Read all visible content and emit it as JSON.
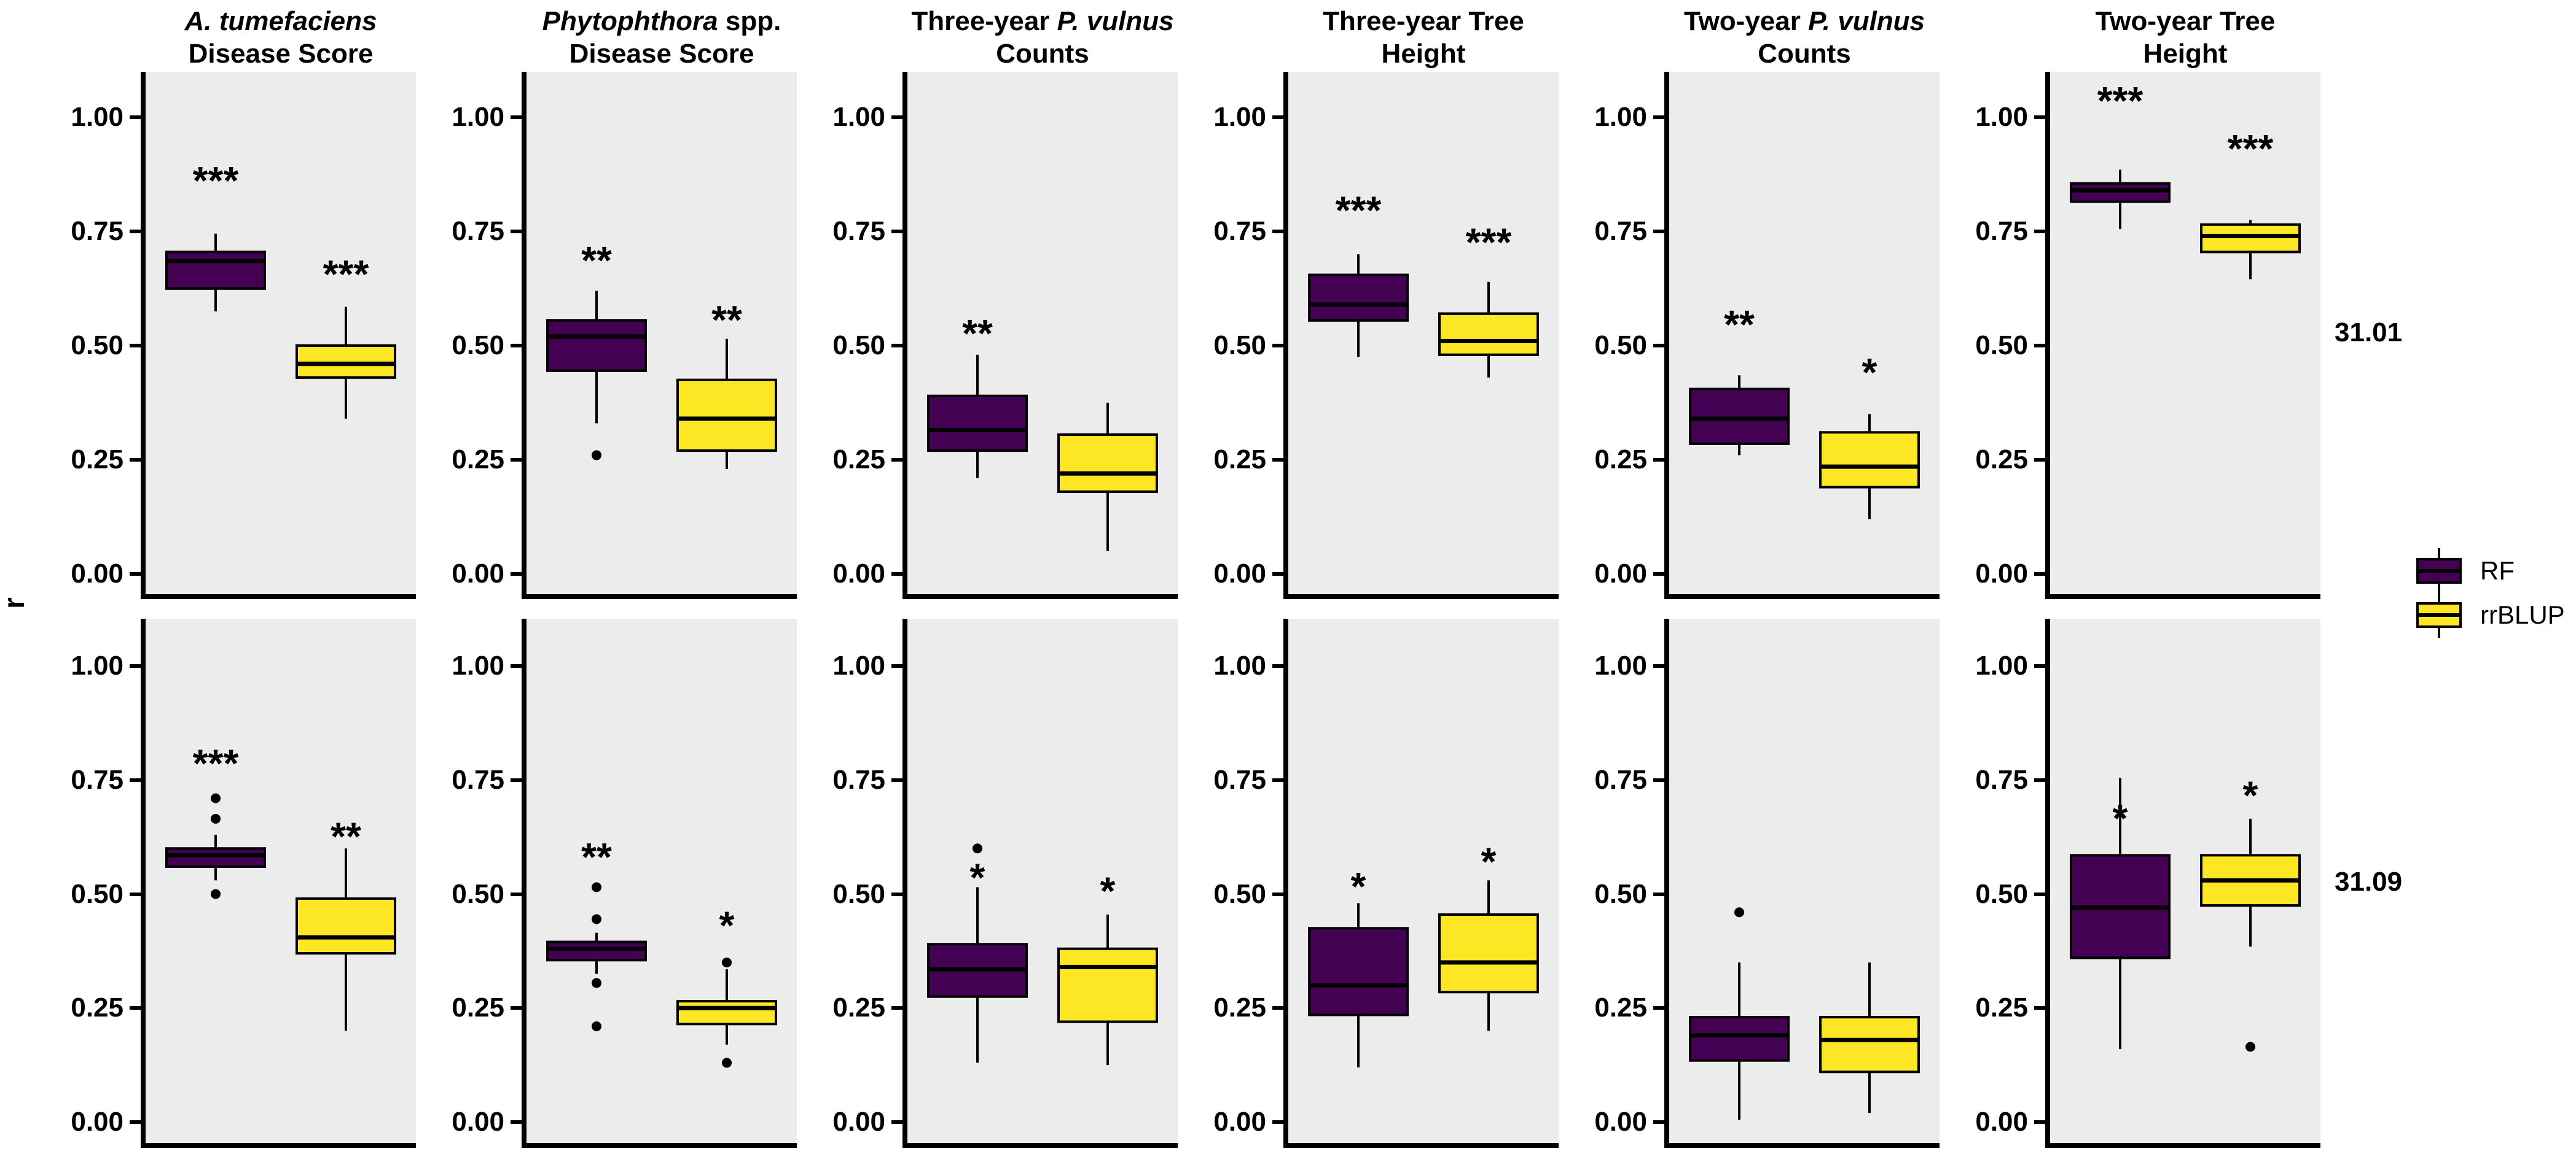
{
  "figure": {
    "y_axis_label": "r",
    "y_tick_labels": [
      "1.00",
      "0.75",
      "0.50",
      "0.25",
      "0.00"
    ],
    "rows": [
      {
        "label": "31.01"
      },
      {
        "label": "31.09"
      }
    ],
    "legend": {
      "items": [
        {
          "label": "RF",
          "color": "#440154"
        },
        {
          "label": "rrBLUP",
          "color": "#FDE725"
        }
      ]
    },
    "colors": {
      "rf": "#440154",
      "rrblup": "#FDE725",
      "panel_background": "#ececec",
      "axis": "#000000"
    }
  },
  "chart_data": {
    "type": "boxplot",
    "layout_hint": "facet grid 2 rows x 6 columns, grey panel backgrounds, no x tick labels, thick black left/bottom axes",
    "y_label": "r",
    "ylim": [
      0.0,
      1.0
    ],
    "y_ticks": [
      1.0,
      0.75,
      0.5,
      0.25,
      0.0
    ],
    "series": [
      "RF",
      "rrBLUP"
    ],
    "series_colors": {
      "RF": "#440154",
      "rrBLUP": "#FDE725"
    },
    "facet_rows": [
      "31.01",
      "31.09"
    ],
    "facet_cols": [
      {
        "line1": [
          {
            "text": "A. tumefaciens",
            "italic": true
          }
        ],
        "line2": "Disease Score"
      },
      {
        "line1": [
          {
            "text": "Phytophthora",
            "italic": true
          },
          {
            "text": " spp.",
            "italic": false
          }
        ],
        "line2": "Disease Score"
      },
      {
        "line1": [
          {
            "text": "Three-year ",
            "italic": false
          },
          {
            "text": "P. vulnus",
            "italic": true
          }
        ],
        "line2": "Counts"
      },
      {
        "line1": [
          {
            "text": "Three-year Tree",
            "italic": false
          }
        ],
        "line2": "Height"
      },
      {
        "line1": [
          {
            "text": "Two-year ",
            "italic": false
          },
          {
            "text": "P. vulnus",
            "italic": true
          }
        ],
        "line2": "Counts"
      },
      {
        "line1": [
          {
            "text": "Two-year Tree",
            "italic": false
          }
        ],
        "line2": "Height"
      }
    ],
    "panels": [
      {
        "row": "31.01",
        "col": 1,
        "boxes": [
          {
            "group": "RF",
            "whisker_low": 0.575,
            "q1": 0.625,
            "median": 0.685,
            "q3": 0.705,
            "whisker_high": 0.745,
            "outliers": [],
            "significance": "***",
            "sig_y": 0.875
          },
          {
            "group": "rrBLUP",
            "whisker_low": 0.34,
            "q1": 0.43,
            "median": 0.46,
            "q3": 0.5,
            "whisker_high": 0.585,
            "outliers": [],
            "significance": "***",
            "sig_y": 0.67
          }
        ]
      },
      {
        "row": "31.01",
        "col": 2,
        "boxes": [
          {
            "group": "RF",
            "whisker_low": 0.33,
            "q1": 0.445,
            "median": 0.52,
            "q3": 0.555,
            "whisker_high": 0.62,
            "outliers": [
              0.26
            ],
            "significance": "**",
            "sig_y": 0.7
          },
          {
            "group": "rrBLUP",
            "whisker_low": 0.23,
            "q1": 0.27,
            "median": 0.34,
            "q3": 0.425,
            "whisker_high": 0.515,
            "outliers": [],
            "significance": "**",
            "sig_y": 0.57
          }
        ]
      },
      {
        "row": "31.01",
        "col": 3,
        "boxes": [
          {
            "group": "RF",
            "whisker_low": 0.21,
            "q1": 0.27,
            "median": 0.315,
            "q3": 0.39,
            "whisker_high": 0.48,
            "outliers": [],
            "significance": "**",
            "sig_y": 0.54
          },
          {
            "group": "rrBLUP",
            "whisker_low": 0.05,
            "q1": 0.18,
            "median": 0.22,
            "q3": 0.305,
            "whisker_high": 0.375,
            "outliers": [],
            "significance": "",
            "sig_y": null
          }
        ]
      },
      {
        "row": "31.01",
        "col": 4,
        "boxes": [
          {
            "group": "RF",
            "whisker_low": 0.475,
            "q1": 0.555,
            "median": 0.59,
            "q3": 0.655,
            "whisker_high": 0.7,
            "outliers": [],
            "significance": "***",
            "sig_y": 0.81
          },
          {
            "group": "rrBLUP",
            "whisker_low": 0.43,
            "q1": 0.48,
            "median": 0.51,
            "q3": 0.57,
            "whisker_high": 0.64,
            "outliers": [],
            "significance": "***",
            "sig_y": 0.74
          }
        ]
      },
      {
        "row": "31.01",
        "col": 5,
        "boxes": [
          {
            "group": "RF",
            "whisker_low": 0.26,
            "q1": 0.285,
            "median": 0.34,
            "q3": 0.405,
            "whisker_high": 0.435,
            "outliers": [],
            "significance": "**",
            "sig_y": 0.56
          },
          {
            "group": "rrBLUP",
            "whisker_low": 0.12,
            "q1": 0.19,
            "median": 0.235,
            "q3": 0.31,
            "whisker_high": 0.35,
            "outliers": [],
            "significance": "*",
            "sig_y": 0.455
          }
        ]
      },
      {
        "row": "31.01",
        "col": 6,
        "boxes": [
          {
            "group": "RF",
            "whisker_low": 0.755,
            "q1": 0.815,
            "median": 0.84,
            "q3": 0.855,
            "whisker_high": 0.885,
            "outliers": [],
            "significance": "***",
            "sig_y": 1.05
          },
          {
            "group": "rrBLUP",
            "whisker_low": 0.645,
            "q1": 0.705,
            "median": 0.74,
            "q3": 0.765,
            "whisker_high": 0.775,
            "outliers": [],
            "significance": "***",
            "sig_y": 0.945
          }
        ]
      },
      {
        "row": "31.09",
        "col": 1,
        "boxes": [
          {
            "group": "RF",
            "whisker_low": 0.53,
            "q1": 0.56,
            "median": 0.585,
            "q3": 0.6,
            "whisker_high": 0.63,
            "outliers": [
              0.71,
              0.665,
              0.5
            ],
            "significance": "***",
            "sig_y": 0.8
          },
          {
            "group": "rrBLUP",
            "whisker_low": 0.2,
            "q1": 0.37,
            "median": 0.405,
            "q3": 0.49,
            "whisker_high": 0.6,
            "outliers": [],
            "significance": "**",
            "sig_y": 0.64
          }
        ]
      },
      {
        "row": "31.09",
        "col": 2,
        "boxes": [
          {
            "group": "RF",
            "whisker_low": 0.325,
            "q1": 0.355,
            "median": 0.38,
            "q3": 0.395,
            "whisker_high": 0.415,
            "outliers": [
              0.515,
              0.445,
              0.305,
              0.21
            ],
            "significance": "**",
            "sig_y": 0.595
          },
          {
            "group": "rrBLUP",
            "whisker_low": 0.17,
            "q1": 0.215,
            "median": 0.25,
            "q3": 0.265,
            "whisker_high": 0.335,
            "outliers": [
              0.35,
              0.13
            ],
            "significance": "*",
            "sig_y": 0.445
          }
        ]
      },
      {
        "row": "31.09",
        "col": 3,
        "boxes": [
          {
            "group": "RF",
            "whisker_low": 0.13,
            "q1": 0.275,
            "median": 0.335,
            "q3": 0.39,
            "whisker_high": 0.515,
            "outliers": [
              0.6
            ],
            "significance": "*",
            "sig_y": 0.55
          },
          {
            "group": "rrBLUP",
            "whisker_low": 0.125,
            "q1": 0.22,
            "median": 0.34,
            "q3": 0.38,
            "whisker_high": 0.455,
            "outliers": [],
            "significance": "*",
            "sig_y": 0.52
          }
        ]
      },
      {
        "row": "31.09",
        "col": 4,
        "boxes": [
          {
            "group": "RF",
            "whisker_low": 0.12,
            "q1": 0.235,
            "median": 0.3,
            "q3": 0.425,
            "whisker_high": 0.48,
            "outliers": [],
            "significance": "*",
            "sig_y": 0.53
          },
          {
            "group": "rrBLUP",
            "whisker_low": 0.2,
            "q1": 0.285,
            "median": 0.35,
            "q3": 0.455,
            "whisker_high": 0.53,
            "outliers": [],
            "significance": "*",
            "sig_y": 0.585
          }
        ]
      },
      {
        "row": "31.09",
        "col": 5,
        "boxes": [
          {
            "group": "RF",
            "whisker_low": 0.005,
            "q1": 0.135,
            "median": 0.19,
            "q3": 0.23,
            "whisker_high": 0.35,
            "outliers": [
              0.46
            ],
            "significance": "",
            "sig_y": null
          },
          {
            "group": "rrBLUP",
            "whisker_low": 0.02,
            "q1": 0.11,
            "median": 0.18,
            "q3": 0.23,
            "whisker_high": 0.35,
            "outliers": [],
            "significance": "",
            "sig_y": null
          }
        ]
      },
      {
        "row": "31.09",
        "col": 6,
        "boxes": [
          {
            "group": "RF",
            "whisker_low": 0.16,
            "q1": 0.36,
            "median": 0.47,
            "q3": 0.585,
            "whisker_high": 0.755,
            "outliers": [],
            "significance": "*",
            "sig_y": 0.68
          },
          {
            "group": "rrBLUP",
            "whisker_low": 0.385,
            "q1": 0.475,
            "median": 0.53,
            "q3": 0.585,
            "whisker_high": 0.665,
            "outliers": [
              0.165
            ],
            "significance": "*",
            "sig_y": 0.73
          }
        ]
      }
    ]
  }
}
